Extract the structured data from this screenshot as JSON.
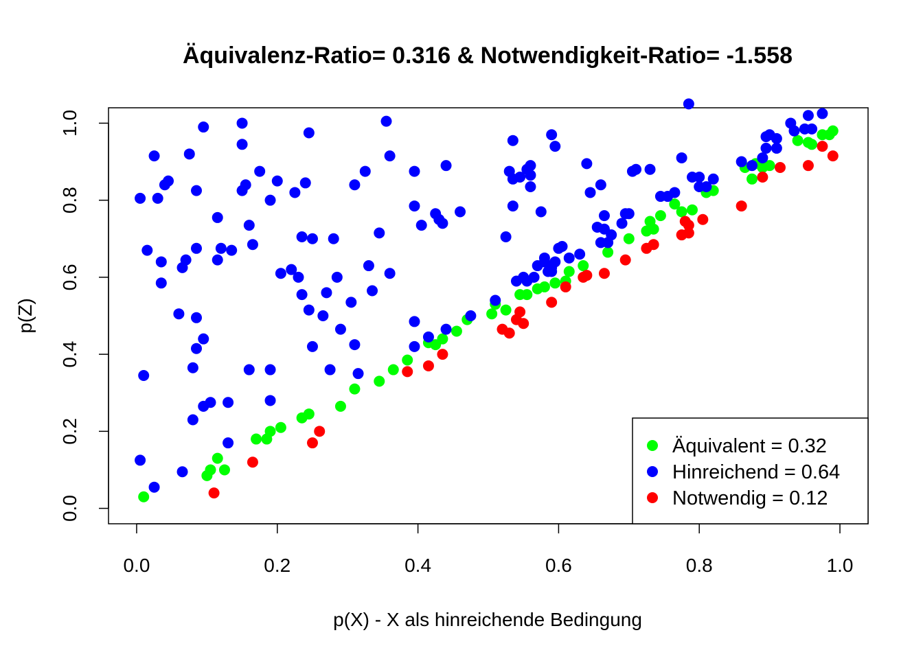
{
  "chart_data": {
    "type": "scatter",
    "title": "Äquivalenz-Ratio= 0.316  & Notwendigkeit-Ratio= -1.558",
    "xlabel": "p(X) - X als hinreichende Bedingung",
    "ylabel": "p(Z)",
    "xlim": [
      -0.04,
      1.04
    ],
    "ylim": [
      -0.04,
      1.04
    ],
    "x_ticks": [
      "0.0",
      "0.2",
      "0.4",
      "0.6",
      "0.8",
      "1.0"
    ],
    "y_ticks": [
      "0.0",
      "0.2",
      "0.4",
      "0.6",
      "0.8",
      "1.0"
    ],
    "grid": false,
    "legend_position": "bottom-right",
    "legend": [
      {
        "label": "Äquivalent = 0.32",
        "color": "#00ff00"
      },
      {
        "label": "Hinreichend = 0.64",
        "color": "#0000ff"
      },
      {
        "label": "Notwendig = 0.12",
        "color": "#ff0000"
      }
    ],
    "series": [
      {
        "name": "Äquivalent = 0.32",
        "color": "#00ff00",
        "points": [
          [
            0.01,
            0.03
          ],
          [
            0.1,
            0.085
          ],
          [
            0.105,
            0.1
          ],
          [
            0.115,
            0.13
          ],
          [
            0.125,
            0.1
          ],
          [
            0.17,
            0.18
          ],
          [
            0.185,
            0.18
          ],
          [
            0.19,
            0.2
          ],
          [
            0.205,
            0.21
          ],
          [
            0.235,
            0.235
          ],
          [
            0.245,
            0.245
          ],
          [
            0.29,
            0.265
          ],
          [
            0.31,
            0.31
          ],
          [
            0.345,
            0.33
          ],
          [
            0.365,
            0.36
          ],
          [
            0.385,
            0.385
          ],
          [
            0.415,
            0.43
          ],
          [
            0.425,
            0.425
          ],
          [
            0.435,
            0.44
          ],
          [
            0.455,
            0.46
          ],
          [
            0.47,
            0.49
          ],
          [
            0.505,
            0.505
          ],
          [
            0.51,
            0.53
          ],
          [
            0.525,
            0.515
          ],
          [
            0.545,
            0.555
          ],
          [
            0.555,
            0.555
          ],
          [
            0.57,
            0.57
          ],
          [
            0.58,
            0.575
          ],
          [
            0.595,
            0.585
          ],
          [
            0.61,
            0.59
          ],
          [
            0.615,
            0.615
          ],
          [
            0.635,
            0.63
          ],
          [
            0.67,
            0.665
          ],
          [
            0.7,
            0.7
          ],
          [
            0.725,
            0.72
          ],
          [
            0.73,
            0.745
          ],
          [
            0.735,
            0.725
          ],
          [
            0.745,
            0.76
          ],
          [
            0.765,
            0.79
          ],
          [
            0.775,
            0.77
          ],
          [
            0.79,
            0.775
          ],
          [
            0.81,
            0.82
          ],
          [
            0.82,
            0.825
          ],
          [
            0.865,
            0.885
          ],
          [
            0.875,
            0.855
          ],
          [
            0.88,
            0.895
          ],
          [
            0.89,
            0.885
          ],
          [
            0.9,
            0.89
          ],
          [
            0.94,
            0.955
          ],
          [
            0.955,
            0.95
          ],
          [
            0.96,
            0.945
          ],
          [
            0.975,
            0.97
          ],
          [
            0.985,
            0.97
          ],
          [
            0.99,
            0.98
          ]
        ]
      },
      {
        "name": "Hinreichend = 0.64",
        "color": "#0000ff",
        "points": [
          [
            0.005,
            0.805
          ],
          [
            0.005,
            0.125
          ],
          [
            0.01,
            0.345
          ],
          [
            0.015,
            0.67
          ],
          [
            0.025,
            0.055
          ],
          [
            0.025,
            0.915
          ],
          [
            0.03,
            0.805
          ],
          [
            0.035,
            0.64
          ],
          [
            0.035,
            0.585
          ],
          [
            0.04,
            0.84
          ],
          [
            0.045,
            0.85
          ],
          [
            0.06,
            0.505
          ],
          [
            0.065,
            0.625
          ],
          [
            0.065,
            0.095
          ],
          [
            0.07,
            0.645
          ],
          [
            0.075,
            0.92
          ],
          [
            0.08,
            0.365
          ],
          [
            0.08,
            0.23
          ],
          [
            0.085,
            0.415
          ],
          [
            0.085,
            0.675
          ],
          [
            0.085,
            0.825
          ],
          [
            0.085,
            0.495
          ],
          [
            0.095,
            0.265
          ],
          [
            0.095,
            0.44
          ],
          [
            0.095,
            0.99
          ],
          [
            0.105,
            0.275
          ],
          [
            0.115,
            0.755
          ],
          [
            0.115,
            0.645
          ],
          [
            0.12,
            0.675
          ],
          [
            0.13,
            0.17
          ],
          [
            0.13,
            0.275
          ],
          [
            0.135,
            0.67
          ],
          [
            0.15,
            1.0
          ],
          [
            0.15,
            0.945
          ],
          [
            0.15,
            0.825
          ],
          [
            0.155,
            0.84
          ],
          [
            0.16,
            0.36
          ],
          [
            0.16,
            0.735
          ],
          [
            0.165,
            0.685
          ],
          [
            0.175,
            0.875
          ],
          [
            0.19,
            0.8
          ],
          [
            0.19,
            0.36
          ],
          [
            0.19,
            0.28
          ],
          [
            0.2,
            0.85
          ],
          [
            0.205,
            0.61
          ],
          [
            0.22,
            0.62
          ],
          [
            0.225,
            0.82
          ],
          [
            0.23,
            0.6
          ],
          [
            0.235,
            0.705
          ],
          [
            0.235,
            0.555
          ],
          [
            0.24,
            0.845
          ],
          [
            0.245,
            0.515
          ],
          [
            0.245,
            0.975
          ],
          [
            0.25,
            0.7
          ],
          [
            0.25,
            0.42
          ],
          [
            0.265,
            0.5
          ],
          [
            0.27,
            0.56
          ],
          [
            0.275,
            0.36
          ],
          [
            0.28,
            0.7
          ],
          [
            0.285,
            0.6
          ],
          [
            0.29,
            0.465
          ],
          [
            0.305,
            0.535
          ],
          [
            0.31,
            0.84
          ],
          [
            0.31,
            0.425
          ],
          [
            0.315,
            0.35
          ],
          [
            0.325,
            0.875
          ],
          [
            0.33,
            0.63
          ],
          [
            0.335,
            0.565
          ],
          [
            0.345,
            0.715
          ],
          [
            0.355,
            1.005
          ],
          [
            0.36,
            0.915
          ],
          [
            0.36,
            0.61
          ],
          [
            0.395,
            0.875
          ],
          [
            0.395,
            0.785
          ],
          [
            0.395,
            0.485
          ],
          [
            0.395,
            0.42
          ],
          [
            0.405,
            0.735
          ],
          [
            0.415,
            0.445
          ],
          [
            0.425,
            0.765
          ],
          [
            0.43,
            0.75
          ],
          [
            0.435,
            0.74
          ],
          [
            0.44,
            0.465
          ],
          [
            0.44,
            0.89
          ],
          [
            0.46,
            0.77
          ],
          [
            0.475,
            0.5
          ],
          [
            0.51,
            0.54
          ],
          [
            0.525,
            0.705
          ],
          [
            0.53,
            0.875
          ],
          [
            0.535,
            0.955
          ],
          [
            0.535,
            0.855
          ],
          [
            0.535,
            0.785
          ],
          [
            0.54,
            0.59
          ],
          [
            0.545,
            0.86
          ],
          [
            0.55,
            0.6
          ],
          [
            0.555,
            0.59
          ],
          [
            0.555,
            0.88
          ],
          [
            0.56,
            0.89
          ],
          [
            0.56,
            0.835
          ],
          [
            0.56,
            0.865
          ],
          [
            0.565,
            0.6
          ],
          [
            0.57,
            0.63
          ],
          [
            0.575,
            0.77
          ],
          [
            0.58,
            0.65
          ],
          [
            0.58,
            0.64
          ],
          [
            0.585,
            0.615
          ],
          [
            0.59,
            0.97
          ],
          [
            0.59,
            0.625
          ],
          [
            0.59,
            0.615
          ],
          [
            0.595,
            0.64
          ],
          [
            0.595,
            0.94
          ],
          [
            0.6,
            0.675
          ],
          [
            0.605,
            0.68
          ],
          [
            0.615,
            0.65
          ],
          [
            0.63,
            0.66
          ],
          [
            0.64,
            0.895
          ],
          [
            0.645,
            0.82
          ],
          [
            0.655,
            0.73
          ],
          [
            0.66,
            0.84
          ],
          [
            0.66,
            0.69
          ],
          [
            0.665,
            0.76
          ],
          [
            0.665,
            0.725
          ],
          [
            0.67,
            0.69
          ],
          [
            0.675,
            0.71
          ],
          [
            0.69,
            0.74
          ],
          [
            0.695,
            0.765
          ],
          [
            0.7,
            0.765
          ],
          [
            0.705,
            0.875
          ],
          [
            0.71,
            0.88
          ],
          [
            0.73,
            0.88
          ],
          [
            0.745,
            0.81
          ],
          [
            0.755,
            0.81
          ],
          [
            0.765,
            0.82
          ],
          [
            0.775,
            0.91
          ],
          [
            0.785,
            1.05
          ],
          [
            0.79,
            0.86
          ],
          [
            0.8,
            0.86
          ],
          [
            0.8,
            0.835
          ],
          [
            0.81,
            0.835
          ],
          [
            0.82,
            0.855
          ],
          [
            0.86,
            0.9
          ],
          [
            0.875,
            0.89
          ],
          [
            0.89,
            0.91
          ],
          [
            0.895,
            0.935
          ],
          [
            0.895,
            0.965
          ],
          [
            0.9,
            0.97
          ],
          [
            0.91,
            0.935
          ],
          [
            0.91,
            0.96
          ],
          [
            0.93,
            1.0
          ],
          [
            0.935,
            0.98
          ],
          [
            0.95,
            0.985
          ],
          [
            0.955,
            1.02
          ],
          [
            0.96,
            0.985
          ],
          [
            0.975,
            1.025
          ]
        ]
      },
      {
        "name": "Notwendig = 0.12",
        "color": "#ff0000",
        "points": [
          [
            0.11,
            0.04
          ],
          [
            0.165,
            0.12
          ],
          [
            0.25,
            0.17
          ],
          [
            0.26,
            0.2
          ],
          [
            0.385,
            0.355
          ],
          [
            0.415,
            0.37
          ],
          [
            0.435,
            0.4
          ],
          [
            0.52,
            0.465
          ],
          [
            0.53,
            0.455
          ],
          [
            0.54,
            0.49
          ],
          [
            0.545,
            0.51
          ],
          [
            0.55,
            0.48
          ],
          [
            0.59,
            0.535
          ],
          [
            0.61,
            0.575
          ],
          [
            0.635,
            0.6
          ],
          [
            0.64,
            0.605
          ],
          [
            0.665,
            0.61
          ],
          [
            0.695,
            0.645
          ],
          [
            0.725,
            0.675
          ],
          [
            0.735,
            0.685
          ],
          [
            0.775,
            0.71
          ],
          [
            0.78,
            0.745
          ],
          [
            0.785,
            0.735
          ],
          [
            0.785,
            0.715
          ],
          [
            0.805,
            0.75
          ],
          [
            0.86,
            0.785
          ],
          [
            0.89,
            0.86
          ],
          [
            0.915,
            0.885
          ],
          [
            0.955,
            0.89
          ],
          [
            0.975,
            0.94
          ],
          [
            0.99,
            0.915
          ]
        ]
      }
    ]
  }
}
